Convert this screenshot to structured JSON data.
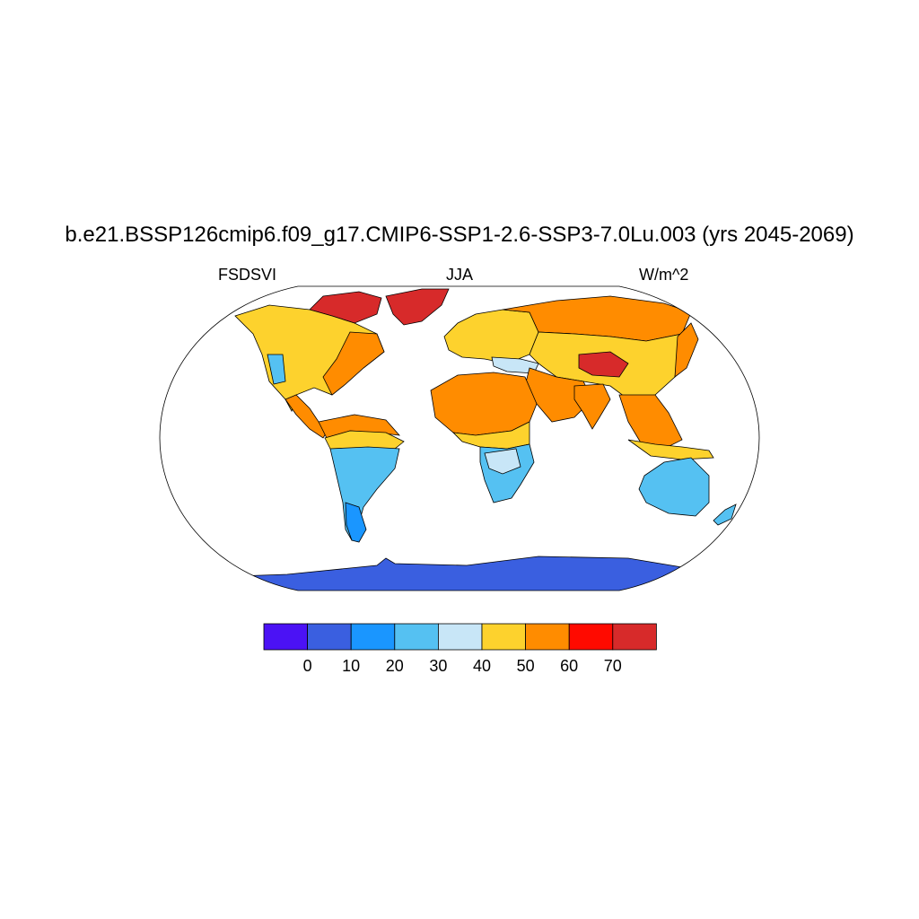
{
  "title": "b.e21.BSSP126cmip6.f09_g17.CMIP6-SSP1-2.6-SSP3-7.0Lu.003 (yrs 2045-2069)",
  "subtitle": {
    "left": "FSDSVI",
    "center": "JJA",
    "right": "W/m^2"
  },
  "colorbar": {
    "colors": [
      "#4b12f5",
      "#3a5fe0",
      "#1a96ff",
      "#55c1f2",
      "#c8e6f7",
      "#fdd22d",
      "#ff8c00",
      "#ff0a00",
      "#d72a2a"
    ],
    "labels": [
      "0",
      "10",
      "20",
      "30",
      "40",
      "50",
      "60",
      "70"
    ]
  },
  "colors": {
    "ocean": "#ffffff",
    "coastline": "#000000",
    "frame": "#000000"
  }
}
